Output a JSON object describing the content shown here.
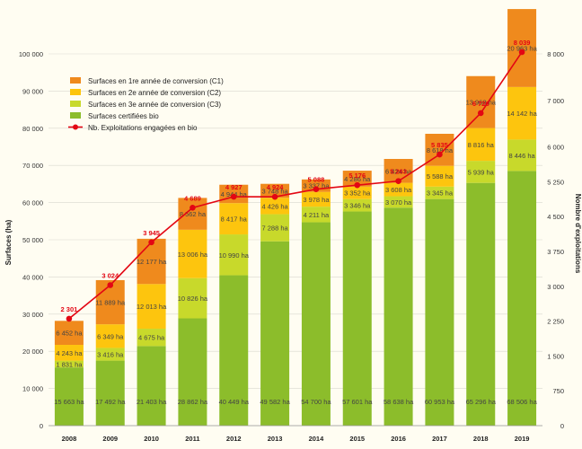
{
  "chart_data": {
    "type": "bar",
    "stacked": true,
    "categories": [
      "2008",
      "2009",
      "2010",
      "2011",
      "2012",
      "2013",
      "2014",
      "2015",
      "2016",
      "2017",
      "2018",
      "2019"
    ],
    "series": [
      {
        "name": "Surfaces certifiées bio",
        "color": "#8cbd2b",
        "values": [
          15663,
          17492,
          21403,
          28862,
          40449,
          49582,
          54700,
          57601,
          58638,
          60953,
          65296,
          68506
        ],
        "labels": [
          "15 663 ha",
          "17 492 ha",
          "21 403 ha",
          "28 862 ha",
          "40 449 ha",
          "49 582 ha",
          "54 700 ha",
          "57 601 ha",
          "58 638 ha",
          "60 953 ha",
          "65 296 ha",
          "68 506 ha"
        ]
      },
      {
        "name": "Surfaces en 3e année de conversion (C3)",
        "color": "#c8d92b",
        "values": [
          1831,
          3416,
          4675,
          10826,
          10990,
          7288,
          4211,
          3346,
          3070,
          3345,
          5939,
          8446
        ],
        "labels": [
          "1 831 ha",
          "3 416 ha",
          "4 675 ha",
          "10 826 ha",
          "10 990 ha",
          "7 288 ha",
          "4 211 ha",
          "3 346 ha",
          "3 070 ha",
          "3 345 ha",
          "5 939 ha",
          "8 446 ha"
        ]
      },
      {
        "name": "Surfaces en 2e année de conversion (C2)",
        "color": "#fdc50e",
        "values": [
          4243,
          6349,
          12013,
          13006,
          8417,
          4426,
          3978,
          3352,
          3608,
          5588,
          8816,
          14142
        ],
        "labels": [
          "4 243 ha",
          "6 349 ha",
          "12 013 ha",
          "13 006 ha",
          "8 417 ha",
          "4 426 ha",
          "3 978 ha",
          "3 352 ha",
          "3 608 ha",
          "5 588 ha",
          "8 816 ha",
          "14 142 ha"
        ]
      },
      {
        "name": "Surfaces en 1re année de conversion  (C1)",
        "color": "#ef8a1d",
        "values": [
          6452,
          11889,
          12177,
          8562,
          4944,
          3748,
          3337,
          4286,
          6424,
          8618,
          13968,
          20963
        ],
        "labels": [
          "6 452 ha",
          "11 889 ha",
          "12 177 ha",
          "8 562 ha",
          "4 944 ha",
          "3 748 ha",
          "3 337 ha",
          "4 286 ha",
          "6 424 ha",
          "8 618 ha",
          "13 968 ha",
          "20 963 ha"
        ]
      }
    ],
    "line": {
      "name": "Nb. Exploitations engagées en bio",
      "color": "#e30613",
      "values": [
        2301,
        3024,
        3945,
        4689,
        4927,
        4924,
        5088,
        5176,
        5263,
        5835,
        6726,
        8039
      ],
      "labels": [
        "2 301",
        "3 024",
        "3 945",
        "4 689",
        "4 927",
        "4 924",
        "5 088",
        "5 176",
        "5 263",
        "5 835",
        "6 726",
        "8 039"
      ]
    },
    "y_left": {
      "label": "Surfaces (ha)",
      "ylim": [
        0,
        100000
      ],
      "ticks": [
        0,
        10000,
        20000,
        30000,
        40000,
        50000,
        60000,
        70000,
        80000,
        90000,
        100000
      ],
      "tick_labels": [
        "0",
        "10 000",
        "20 000",
        "30 000",
        "40 000",
        "50 000",
        "60 000",
        "70 000",
        "80 000",
        "90 000",
        "100 000"
      ]
    },
    "y_right": {
      "label": "Nombre d'exploitations",
      "ylim": [
        0,
        8000
      ],
      "ticks": [
        0,
        750,
        1500,
        2250,
        3000,
        3750,
        4500,
        5250,
        6000,
        7000,
        8000
      ],
      "tick_labels": [
        "0",
        "750",
        "1 500",
        "2 250",
        "3 000",
        "3 750",
        "4 500",
        "5 250",
        "6 000",
        "7 000",
        "8 000"
      ]
    },
    "legend": {
      "position": "top-left",
      "items": [
        {
          "label": "Surfaces en 1re année de conversion  (C1)",
          "color": "#ef8a1d",
          "kind": "box"
        },
        {
          "label": "Surfaces en 2e année de conversion (C2)",
          "color": "#fdc50e",
          "kind": "box"
        },
        {
          "label": "Surfaces en 3e année de conversion (C3)",
          "color": "#c8d92b",
          "kind": "box"
        },
        {
          "label": "Surfaces certifiées bio",
          "color": "#8cbd2b",
          "kind": "box"
        },
        {
          "label": "Nb. Exploitations engagées en bio",
          "color": "#e30613",
          "kind": "line"
        }
      ]
    }
  }
}
